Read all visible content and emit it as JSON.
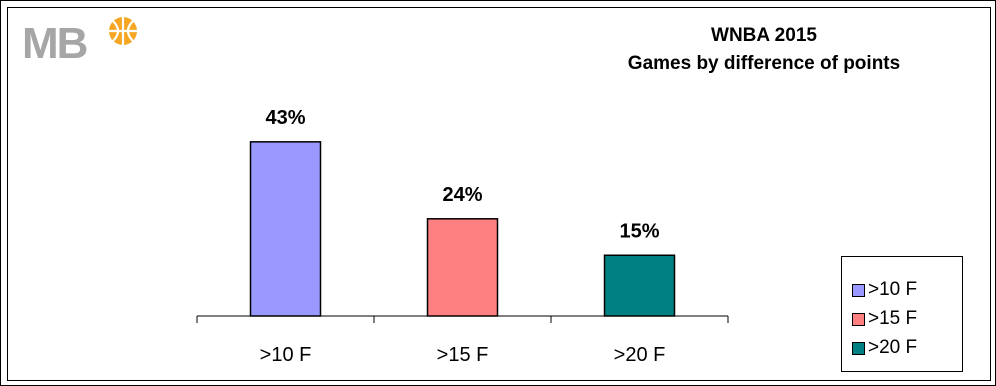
{
  "logo": {
    "text": "MB"
  },
  "title": {
    "line1": "WNBA 2015",
    "line2": "Games by difference of points"
  },
  "chart_data": {
    "type": "bar",
    "categories": [
      ">10 F",
      ">15 F",
      ">20 F"
    ],
    "values": [
      43,
      24,
      15
    ],
    "value_labels": [
      "43%",
      "24%",
      "15%"
    ],
    "colors": [
      "#9999ff",
      "#ff8080",
      "#008080"
    ],
    "title": "WNBA 2015 Games by difference of points",
    "xlabel": "",
    "ylabel": "",
    "ylim": [
      0,
      50
    ],
    "grid": false,
    "legend_position": "bottom-right"
  },
  "legend": {
    "items": [
      {
        "label": ">10 F",
        "color": "#9999ff"
      },
      {
        "label": ">15 F",
        "color": "#ff8080"
      },
      {
        "label": ">20 F",
        "color": "#008080"
      }
    ]
  }
}
